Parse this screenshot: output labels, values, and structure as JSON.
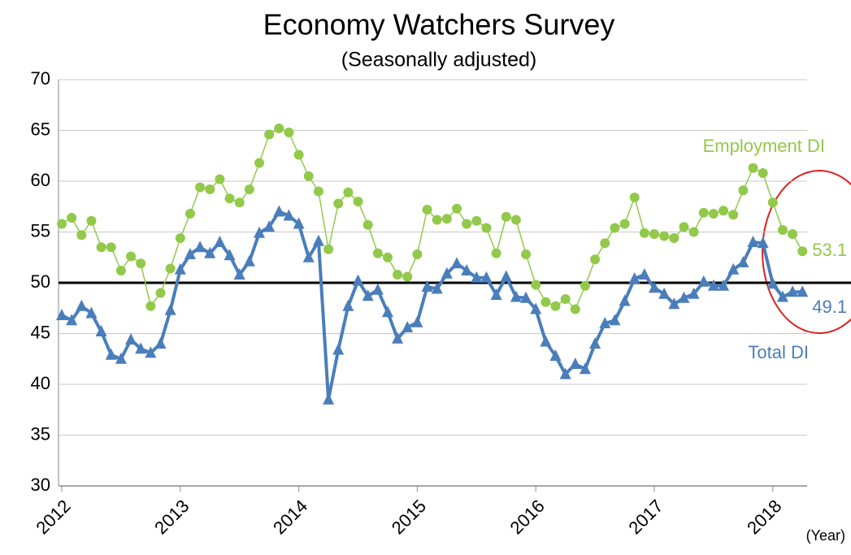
{
  "chart_data": {
    "type": "line",
    "title": "Economy Watchers Survey",
    "subtitle": "(Seasonally adjusted)",
    "x_label": "(Year)",
    "categories": [
      "2012",
      null,
      null,
      null,
      null,
      null,
      null,
      null,
      null,
      null,
      null,
      null,
      "2013",
      null,
      null,
      null,
      null,
      null,
      null,
      null,
      null,
      null,
      null,
      null,
      "2014",
      null,
      null,
      null,
      null,
      null,
      null,
      null,
      null,
      null,
      null,
      null,
      "2015",
      null,
      null,
      null,
      null,
      null,
      null,
      null,
      null,
      null,
      null,
      null,
      "2016",
      null,
      null,
      null,
      null,
      null,
      null,
      null,
      null,
      null,
      null,
      null,
      "2017",
      null,
      null,
      null,
      null,
      null,
      null,
      null,
      null,
      null,
      null,
      null,
      "2018",
      null,
      null,
      null
    ],
    "series": [
      {
        "name": "Employment DI",
        "color": "#92c94a",
        "marker": "circle",
        "values": [
          55.8,
          56.4,
          54.7,
          56.1,
          53.5,
          53.5,
          51.2,
          52.6,
          51.9,
          47.7,
          49.0,
          51.4,
          54.4,
          56.8,
          59.4,
          59.2,
          60.2,
          58.3,
          57.9,
          59.2,
          61.8,
          64.6,
          65.2,
          64.8,
          62.6,
          60.5,
          59.0,
          53.3,
          57.8,
          58.9,
          58.0,
          55.7,
          52.9,
          52.5,
          50.8,
          50.6,
          52.8,
          57.2,
          56.2,
          56.3,
          57.3,
          55.8,
          56.1,
          55.4,
          52.9,
          56.5,
          56.2,
          52.8,
          49.8,
          48.1,
          47.7,
          48.4,
          47.4,
          49.7,
          52.3,
          53.9,
          55.4,
          55.8,
          58.4,
          54.9,
          54.8,
          54.6,
          54.4,
          55.5,
          55.0,
          56.9,
          56.8,
          57.1,
          56.7,
          59.1,
          61.3,
          60.8,
          57.9,
          55.2,
          54.8,
          53.1
        ]
      },
      {
        "name": "Total DI",
        "color": "#4a7ebb",
        "marker": "triangle",
        "values": [
          46.8,
          46.3,
          47.7,
          47.0,
          45.2,
          42.9,
          42.5,
          44.4,
          43.5,
          43.1,
          44.0,
          47.3,
          51.3,
          52.8,
          53.5,
          52.9,
          54.0,
          52.7,
          50.8,
          52.1,
          54.9,
          55.5,
          57.0,
          56.6,
          55.8,
          52.5,
          54.1,
          38.5,
          43.4,
          47.7,
          50.2,
          48.7,
          49.3,
          47.1,
          44.5,
          45.6,
          46.1,
          49.6,
          49.4,
          50.9,
          51.9,
          51.2,
          50.5,
          50.5,
          48.8,
          50.6,
          48.6,
          48.5,
          47.4,
          44.2,
          42.8,
          41.0,
          42.0,
          41.5,
          44.0,
          46.0,
          46.3,
          48.2,
          50.4,
          50.8,
          49.5,
          48.9,
          47.9,
          48.5,
          48.9,
          50.1,
          49.7,
          49.7,
          51.3,
          52.0,
          54.0,
          53.9,
          49.9,
          48.6,
          49.1,
          49.1
        ]
      }
    ],
    "reference_line": 50,
    "ylim": [
      30,
      70
    ],
    "yticks": [
      30,
      35,
      40,
      45,
      50,
      55,
      60,
      65,
      70
    ],
    "grid": true
  }
}
